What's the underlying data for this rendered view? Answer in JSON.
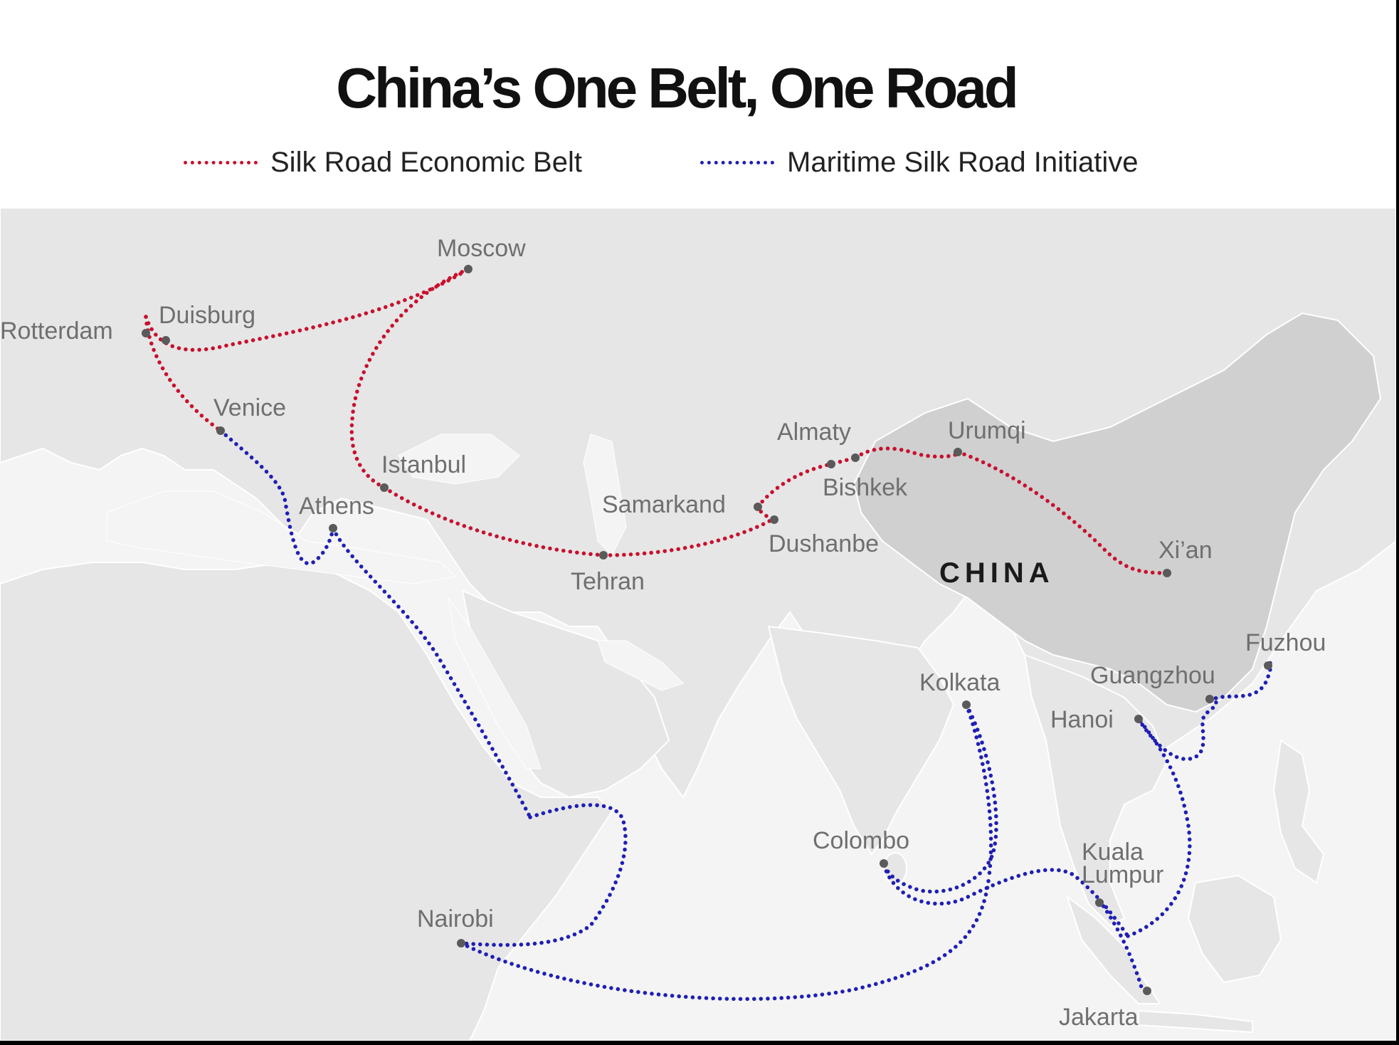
{
  "title": "China’s One Belt, One Road",
  "legend": [
    {
      "label": "Silk Road Economic Belt",
      "color": "#c8102e"
    },
    {
      "label": "Maritime Silk Road Initiative",
      "color": "#1f1fb4"
    }
  ],
  "colors": {
    "belt": "#c8102e",
    "maritime": "#1f1fb4",
    "land": "#e6e6e6",
    "sea": "#f4f4f4",
    "china": "#d0d0d0",
    "dot": "#5a5a5a",
    "city_label": "#6f6f6f"
  },
  "country_label": "CHINA",
  "cities": {
    "moscow": "Moscow",
    "duisburg": "Duisburg",
    "rotterdam": "Rotterdam",
    "venice": "Venice",
    "istanbul": "Istanbul",
    "athens": "Athens",
    "almaty": "Almaty",
    "urumqi": "Urumqi",
    "bishkek": "Bishkek",
    "samarkand": "Samarkand",
    "dushanbe": "Dushanbe",
    "tehran": "Tehran",
    "xian": "Xi’an",
    "fuzhou": "Fuzhou",
    "guangzhou": "Guangzhou",
    "hanoi": "Hanoi",
    "kolkata": "Kolkata",
    "colombo": "Colombo",
    "kuala_lumpur_1": "Kuala",
    "kuala_lumpur_2": "Lumpur",
    "nairobi": "Nairobi",
    "jakarta": "Jakarta"
  }
}
